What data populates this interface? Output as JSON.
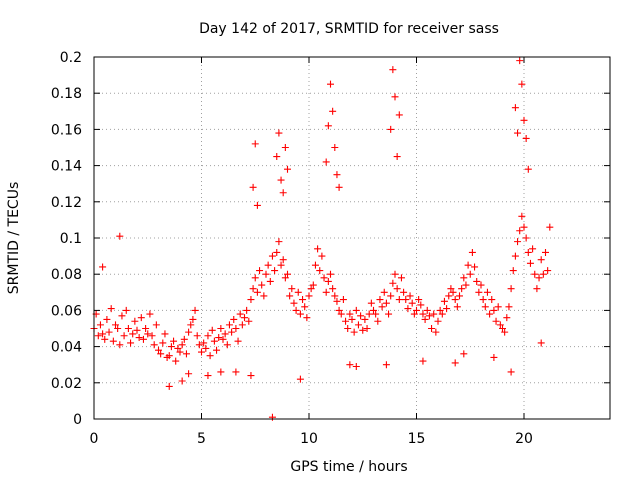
{
  "chart_data": {
    "type": "scatter",
    "title": "Day 142 of 2017, SRMTID for receiver sass",
    "xlabel": "GPS time / hours",
    "ylabel": "SRMTID / TECUs",
    "xlim": [
      0,
      24
    ],
    "ylim": [
      0,
      0.2
    ],
    "x_ticks": [
      0,
      5,
      10,
      15,
      20
    ],
    "x_tick_labels": [
      "0",
      "5",
      "10",
      "15",
      "20"
    ],
    "y_ticks": [
      0,
      0.02,
      0.04,
      0.06,
      0.08,
      0.1,
      0.12,
      0.14,
      0.16,
      0.18,
      0.2
    ],
    "y_tick_labels": [
      "0",
      "0.02",
      "0.04",
      "0.06",
      "0.08",
      "0.1",
      "0.12",
      "0.14",
      "0.16",
      "0.18",
      "0.2"
    ],
    "grid": true,
    "marker": "+",
    "series": [
      {
        "name": "SRMTID",
        "color": "#ff0000",
        "x": [
          0.0,
          0.1,
          0.2,
          0.3,
          0.4,
          0.5,
          0.6,
          0.7,
          0.8,
          0.9,
          1.0,
          1.1,
          1.2,
          1.3,
          1.4,
          1.5,
          1.6,
          1.7,
          1.8,
          1.9,
          2.0,
          2.1,
          2.2,
          2.3,
          2.4,
          2.5,
          2.6,
          2.7,
          2.8,
          2.9,
          3.0,
          3.1,
          3.2,
          3.3,
          3.4,
          3.5,
          3.6,
          3.7,
          3.8,
          3.9,
          4.0,
          4.1,
          4.2,
          4.3,
          4.4,
          4.5,
          4.6,
          4.7,
          4.8,
          4.9,
          5.0,
          5.1,
          5.2,
          5.3,
          5.4,
          5.5,
          5.6,
          5.7,
          5.8,
          5.9,
          6.0,
          6.1,
          6.2,
          6.3,
          6.4,
          6.5,
          6.6,
          6.7,
          6.8,
          6.9,
          7.0,
          7.1,
          7.2,
          7.3,
          7.4,
          7.5,
          7.6,
          7.7,
          7.8,
          7.9,
          8.0,
          8.1,
          8.2,
          8.3,
          8.4,
          8.5,
          8.6,
          8.7,
          8.8,
          8.9,
          9.0,
          9.1,
          9.2,
          9.3,
          9.4,
          9.5,
          9.6,
          9.7,
          9.8,
          9.9,
          10.0,
          10.1,
          10.2,
          10.3,
          10.4,
          10.5,
          10.6,
          10.7,
          10.8,
          10.9,
          11.0,
          11.1,
          11.2,
          11.3,
          11.4,
          11.5,
          11.6,
          11.7,
          11.8,
          11.9,
          12.0,
          12.1,
          12.2,
          12.3,
          12.4,
          12.5,
          12.6,
          12.7,
          12.8,
          12.9,
          13.0,
          13.1,
          13.2,
          13.3,
          13.4,
          13.5,
          13.6,
          13.7,
          13.8,
          13.9,
          14.0,
          14.1,
          14.2,
          14.3,
          14.4,
          14.5,
          14.6,
          14.7,
          14.8,
          14.9,
          15.0,
          15.1,
          15.2,
          15.3,
          15.4,
          15.5,
          15.6,
          15.7,
          15.8,
          15.9,
          16.0,
          16.1,
          16.2,
          16.3,
          16.4,
          16.5,
          16.6,
          16.7,
          16.8,
          16.9,
          17.0,
          17.1,
          17.2,
          17.3,
          17.4,
          17.5,
          17.6,
          17.7,
          17.8,
          17.9,
          18.0,
          18.1,
          18.2,
          18.3,
          18.4,
          18.5,
          18.6,
          18.7,
          18.8,
          18.9,
          19.0,
          19.1,
          19.2,
          19.3,
          19.4,
          19.5,
          19.6,
          19.7,
          19.8,
          19.9,
          20.0,
          20.1,
          20.2,
          20.3,
          20.4,
          20.5,
          20.6,
          20.7,
          20.8,
          20.9,
          21.0,
          21.1,
          21.2,
          7.4,
          7.5,
          7.6,
          8.5,
          8.6,
          8.7,
          8.8,
          8.9,
          9.0,
          10.8,
          10.9,
          11.0,
          11.1,
          11.2,
          11.3,
          11.4,
          13.8,
          13.9,
          14.0,
          14.1,
          14.2,
          19.6,
          19.7,
          19.8,
          19.9,
          20.0,
          20.1,
          20.2,
          8.3,
          4.1,
          0.4,
          1.2,
          3.5,
          4.4,
          5.3,
          6.6,
          7.3,
          9.6,
          12.2,
          13.6,
          15.3,
          16.8,
          18.6,
          19.4,
          20.8,
          17.2,
          11.9,
          5.9
        ],
        "y": [
          0.05,
          0.058,
          0.046,
          0.052,
          0.047,
          0.044,
          0.055,
          0.048,
          0.061,
          0.043,
          0.052,
          0.05,
          0.041,
          0.057,
          0.046,
          0.06,
          0.05,
          0.042,
          0.047,
          0.054,
          0.049,
          0.045,
          0.056,
          0.044,
          0.05,
          0.047,
          0.058,
          0.046,
          0.041,
          0.052,
          0.038,
          0.036,
          0.042,
          0.047,
          0.034,
          0.035,
          0.04,
          0.043,
          0.032,
          0.039,
          0.037,
          0.041,
          0.044,
          0.036,
          0.048,
          0.052,
          0.055,
          0.06,
          0.046,
          0.041,
          0.037,
          0.042,
          0.039,
          0.046,
          0.035,
          0.049,
          0.043,
          0.038,
          0.045,
          0.05,
          0.044,
          0.047,
          0.041,
          0.052,
          0.048,
          0.055,
          0.05,
          0.043,
          0.058,
          0.052,
          0.056,
          0.06,
          0.054,
          0.066,
          0.072,
          0.078,
          0.07,
          0.082,
          0.074,
          0.068,
          0.08,
          0.085,
          0.076,
          0.09,
          0.082,
          0.092,
          0.098,
          0.085,
          0.088,
          0.078,
          0.08,
          0.068,
          0.072,
          0.064,
          0.06,
          0.07,
          0.058,
          0.066,
          0.062,
          0.056,
          0.068,
          0.072,
          0.074,
          0.085,
          0.094,
          0.082,
          0.09,
          0.078,
          0.07,
          0.076,
          0.08,
          0.072,
          0.068,
          0.065,
          0.06,
          0.058,
          0.066,
          0.054,
          0.05,
          0.058,
          0.055,
          0.048,
          0.06,
          0.052,
          0.057,
          0.049,
          0.055,
          0.05,
          0.058,
          0.064,
          0.06,
          0.058,
          0.054,
          0.066,
          0.062,
          0.07,
          0.064,
          0.058,
          0.068,
          0.075,
          0.08,
          0.072,
          0.066,
          0.078,
          0.07,
          0.066,
          0.061,
          0.068,
          0.064,
          0.058,
          0.06,
          0.066,
          0.063,
          0.058,
          0.055,
          0.06,
          0.057,
          0.05,
          0.058,
          0.048,
          0.054,
          0.06,
          0.058,
          0.065,
          0.061,
          0.068,
          0.072,
          0.07,
          0.066,
          0.062,
          0.068,
          0.072,
          0.078,
          0.074,
          0.085,
          0.08,
          0.092,
          0.084,
          0.076,
          0.07,
          0.074,
          0.066,
          0.062,
          0.07,
          0.058,
          0.066,
          0.06,
          0.054,
          0.062,
          0.052,
          0.05,
          0.048,
          0.056,
          0.062,
          0.072,
          0.082,
          0.09,
          0.098,
          0.104,
          0.112,
          0.106,
          0.1,
          0.092,
          0.086,
          0.094,
          0.08,
          0.072,
          0.078,
          0.088,
          0.08,
          0.092,
          0.082,
          0.106,
          0.128,
          0.152,
          0.118,
          0.145,
          0.158,
          0.132,
          0.125,
          0.15,
          0.138,
          0.142,
          0.162,
          0.185,
          0.17,
          0.15,
          0.135,
          0.128,
          0.16,
          0.193,
          0.178,
          0.145,
          0.168,
          0.172,
          0.158,
          0.198,
          0.185,
          0.165,
          0.155,
          0.138,
          0.001,
          0.021,
          0.084,
          0.101,
          0.018,
          0.025,
          0.024,
          0.026,
          0.024,
          0.022,
          0.029,
          0.03,
          0.032,
          0.031,
          0.034,
          0.026,
          0.042,
          0.036,
          0.03,
          0.026
        ]
      }
    ]
  }
}
